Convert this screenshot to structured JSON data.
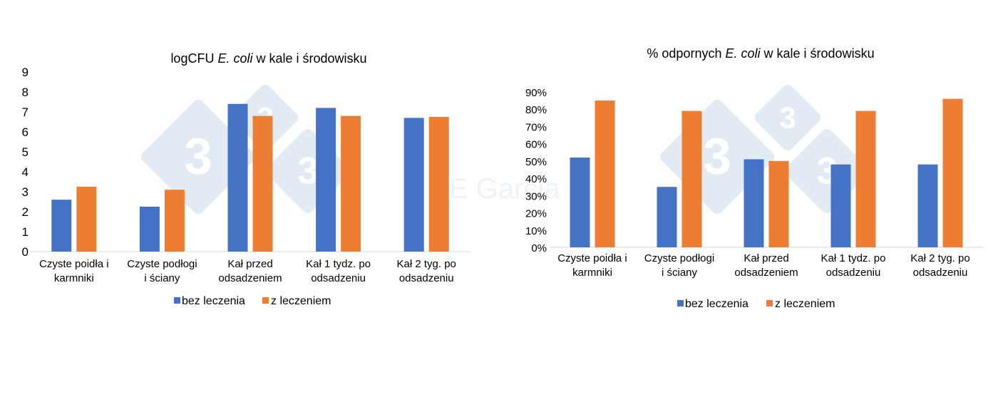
{
  "colors": {
    "bez_leczenia": "#4472c4",
    "z_leczeniem": "#ed7d31",
    "axis": "#d9d9d9",
    "watermark_shape": "#dde8f2",
    "watermark_text": "#eef3f8"
  },
  "watermark": {
    "logo_text": "3",
    "author_text": "E Garcia"
  },
  "chart_data": [
    {
      "type": "bar",
      "title_parts": [
        {
          "text": "logCFU ",
          "italic": false
        },
        {
          "text": "E. coli",
          "italic": true
        },
        {
          "text": " w kale i środowisku",
          "italic": false
        }
      ],
      "categories": [
        [
          "Czyste poidła i",
          "karmniki"
        ],
        [
          "Czyste podłogi",
          "i ściany"
        ],
        [
          "Kał przed",
          "odsadzeniem"
        ],
        [
          "Kał 1 tydz. po",
          "odsadzeniu"
        ],
        [
          "Kał 2 tyg. po",
          "odsadzeniu"
        ]
      ],
      "series": [
        {
          "name": "bez leczenia",
          "values": [
            2.6,
            2.25,
            7.4,
            7.2,
            6.7
          ]
        },
        {
          "name": "z leczeniem",
          "values": [
            3.25,
            3.1,
            6.8,
            6.8,
            6.75
          ]
        }
      ],
      "ylim": [
        0,
        9
      ],
      "yticks": [
        0,
        1,
        2,
        3,
        4,
        5,
        6,
        7,
        8,
        9
      ],
      "ytick_labels": [
        "0",
        "1",
        "2",
        "3",
        "4",
        "5",
        "6",
        "7",
        "8",
        "9"
      ],
      "grid": false,
      "legend_position": "bottom"
    },
    {
      "type": "bar",
      "title_parts": [
        {
          "text": "% odpornych ",
          "italic": false
        },
        {
          "text": "E. coli",
          "italic": true
        },
        {
          "text": " w kale i środowisku",
          "italic": false
        }
      ],
      "categories": [
        [
          "Czyste poidła i",
          "karmniki"
        ],
        [
          "Czyste podłogi",
          "i ściany"
        ],
        [
          "Kał przed",
          "odsadzeniem"
        ],
        [
          "Kał 1 tydz. po",
          "odsadzeniu"
        ],
        [
          "Kał 2 tyg. po",
          "odsadzeniu"
        ]
      ],
      "series": [
        {
          "name": "bez leczenia",
          "values": [
            52,
            35,
            51,
            48,
            48
          ]
        },
        {
          "name": "z leczeniem",
          "values": [
            85,
            79,
            50,
            79,
            86
          ]
        }
      ],
      "ylim": [
        0,
        90
      ],
      "yticks": [
        0,
        10,
        20,
        30,
        40,
        50,
        60,
        70,
        80,
        90
      ],
      "ytick_labels": [
        "0%",
        "10%",
        "20%",
        "30%",
        "40%",
        "50%",
        "60%",
        "70%",
        "80%",
        "90%"
      ],
      "grid": false,
      "legend_position": "bottom"
    }
  ]
}
